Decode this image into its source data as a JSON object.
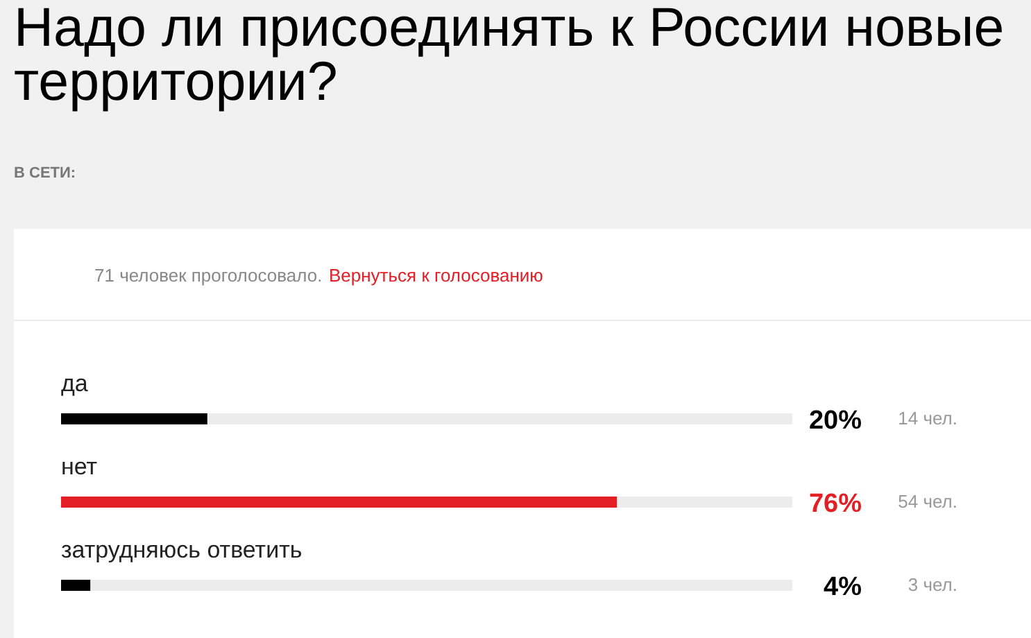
{
  "chart_data": {
    "type": "bar",
    "orientation": "horizontal",
    "title": "Надо ли присоединять к России новые территории?",
    "subtitle": "В СЕТИ:",
    "categories": [
      "да",
      "нет",
      "затрудняюсь ответить"
    ],
    "values": [
      20,
      76,
      4
    ],
    "colors": [
      "#000000",
      "#e31e24",
      "#000000"
    ],
    "value_labels": [
      "20%",
      "76%",
      "4%"
    ],
    "xlim": [
      0,
      100
    ],
    "tick_labels": "y",
    "annotations": [
      "71 человек проголосовало.",
      "Вернуться к голосованию",
      "14 чел.",
      "54 чел.",
      "3 чел."
    ]
  }
}
